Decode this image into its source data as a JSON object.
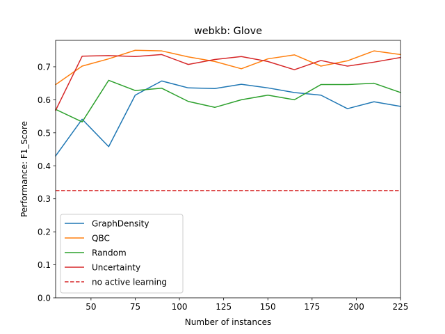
{
  "chart_data": {
    "type": "line",
    "title": "webkb: Glove",
    "xlabel": "Number of instances",
    "ylabel": "Performance: F1_Score",
    "xlim": [
      30,
      225
    ],
    "ylim": [
      0.0,
      0.78
    ],
    "xticks": [
      50,
      75,
      100,
      125,
      150,
      175,
      200,
      225
    ],
    "yticks": [
      0.0,
      0.1,
      0.2,
      0.3,
      0.4,
      0.5,
      0.6,
      0.7
    ],
    "grid": false,
    "legend_position": "lower-left",
    "x": [
      30,
      45,
      60,
      75,
      90,
      105,
      120,
      135,
      150,
      165,
      180,
      195,
      210,
      225
    ],
    "series": [
      {
        "name": "GraphDensity",
        "color": "#1f77b4",
        "style": "solid",
        "values": [
          0.43,
          0.541,
          0.458,
          0.614,
          0.657,
          0.636,
          0.634,
          0.647,
          0.636,
          0.622,
          0.614,
          0.573,
          0.594,
          0.58
        ]
      },
      {
        "name": "QBC",
        "color": "#ff7f0e",
        "style": "solid",
        "values": [
          0.646,
          0.702,
          0.724,
          0.75,
          0.748,
          0.73,
          0.716,
          0.694,
          0.724,
          0.736,
          0.702,
          0.718,
          0.748,
          0.737
        ]
      },
      {
        "name": "Random",
        "color": "#2ca02c",
        "style": "solid",
        "values": [
          0.571,
          0.533,
          0.659,
          0.628,
          0.635,
          0.595,
          0.577,
          0.6,
          0.614,
          0.6,
          0.646,
          0.646,
          0.65,
          0.622
        ]
      },
      {
        "name": "Uncertainty",
        "color": "#d62728",
        "style": "solid",
        "values": [
          0.568,
          0.732,
          0.734,
          0.731,
          0.737,
          0.707,
          0.722,
          0.731,
          0.716,
          0.691,
          0.719,
          0.702,
          0.714,
          0.728
        ]
      },
      {
        "name": "no active learning",
        "color": "#d62728",
        "style": "dashed",
        "values": [
          0.325,
          0.325,
          0.325,
          0.325,
          0.325,
          0.325,
          0.325,
          0.325,
          0.325,
          0.325,
          0.325,
          0.325,
          0.325,
          0.325
        ]
      }
    ]
  }
}
